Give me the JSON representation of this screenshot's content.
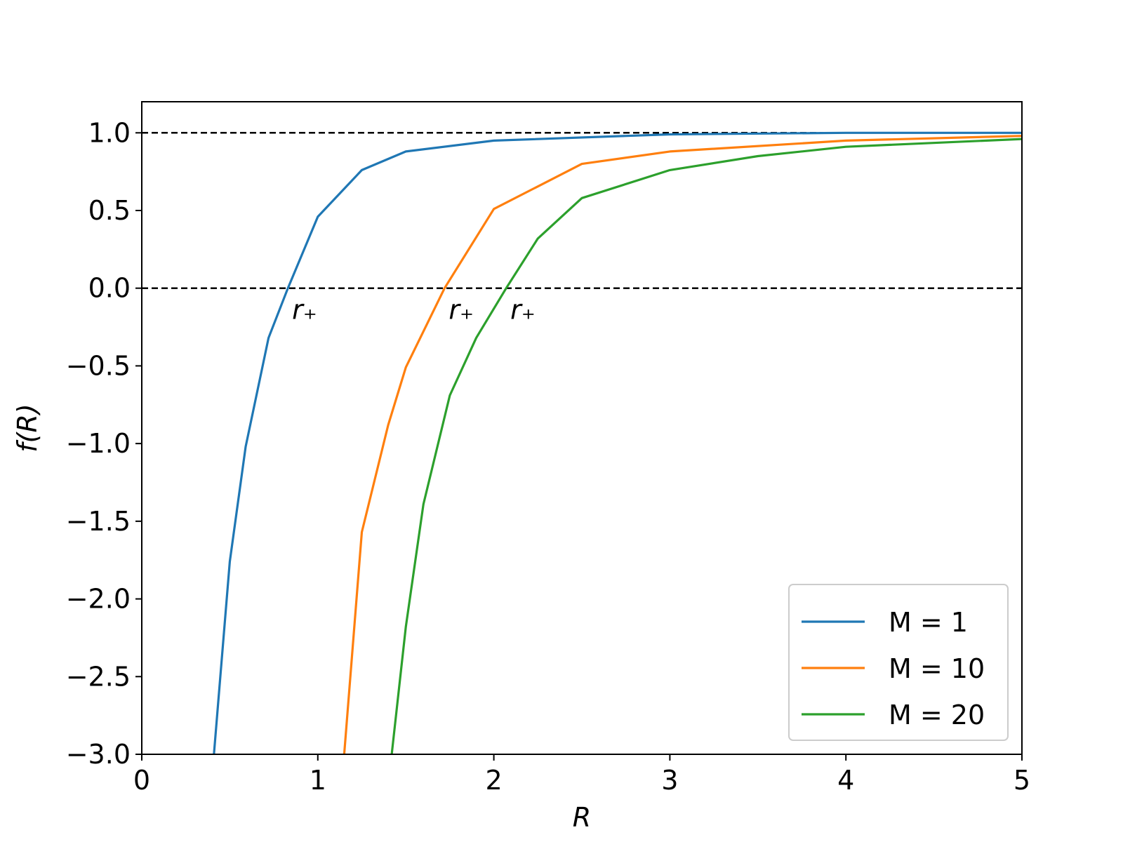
{
  "chart_data": {
    "type": "line",
    "xlabel": "R",
    "ylabel": "f(R)",
    "xlim": [
      0,
      5
    ],
    "ylim": [
      -3,
      1.2
    ],
    "xticks": [
      0,
      1,
      2,
      3,
      4,
      5
    ],
    "yticks": [
      {
        "value": 1.0,
        "label": "1.0"
      },
      {
        "value": 0.5,
        "label": "0.5"
      },
      {
        "value": 0.0,
        "label": "0.0"
      },
      {
        "value": -0.5,
        "label": "−0.5"
      },
      {
        "value": -1.0,
        "label": "−1.0"
      },
      {
        "value": -1.5,
        "label": "−1.5"
      },
      {
        "value": -2.0,
        "label": "−2.0"
      },
      {
        "value": -2.5,
        "label": "−2.5"
      },
      {
        "value": -3.0,
        "label": "−3.0"
      }
    ],
    "hlines": [
      1,
      0
    ],
    "legend": "lower right",
    "series": [
      {
        "name": "M = 1",
        "color": "#1f77b4",
        "annotation": "r₊",
        "x": [
          0.41,
          0.5,
          0.59,
          0.72,
          0.83,
          1.0,
          1.25,
          1.5,
          2.0,
          3.0,
          4.0,
          5.0
        ],
        "values": [
          -3,
          -1.76,
          -1.02,
          -0.32,
          0,
          0.46,
          0.76,
          0.88,
          0.95,
          0.99,
          1.0,
          1.0
        ]
      },
      {
        "name": "M = 10",
        "color": "#ff7f0e",
        "annotation": "r₊",
        "x": [
          1.15,
          1.25,
          1.4,
          1.5,
          1.72,
          2.0,
          2.5,
          3.0,
          4.0,
          5.0
        ],
        "values": [
          -3,
          -1.57,
          -0.88,
          -0.51,
          0,
          0.51,
          0.8,
          0.88,
          0.95,
          0.98
        ]
      },
      {
        "name": "M = 20",
        "color": "#2ca02c",
        "annotation": "r₊",
        "x": [
          1.42,
          1.5,
          1.6,
          1.75,
          1.9,
          2.07,
          2.25,
          2.5,
          3.0,
          3.5,
          4.0,
          5.0
        ],
        "values": [
          -3,
          -2.18,
          -1.39,
          -0.69,
          -0.32,
          0,
          0.32,
          0.58,
          0.76,
          0.85,
          0.91,
          0.96
        ]
      }
    ]
  }
}
